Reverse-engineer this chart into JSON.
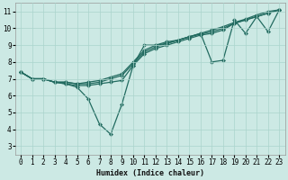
{
  "xlabel": "Humidex (Indice chaleur)",
  "xlim": [
    -0.5,
    23.5
  ],
  "ylim": [
    2.5,
    11.5
  ],
  "xticks": [
    0,
    1,
    2,
    3,
    4,
    5,
    6,
    7,
    8,
    9,
    10,
    11,
    12,
    13,
    14,
    15,
    16,
    17,
    18,
    19,
    20,
    21,
    22,
    23
  ],
  "yticks": [
    3,
    4,
    5,
    6,
    7,
    8,
    9,
    10,
    11
  ],
  "bg_color": "#cce9e4",
  "grid_color": "#aad4cc",
  "line_color": "#226b60",
  "lines": [
    {
      "x": [
        0,
        1,
        2,
        3,
        4,
        5,
        6,
        7,
        8,
        9,
        10,
        11,
        12,
        13,
        14,
        15,
        16,
        17,
        18,
        19,
        20,
        21,
        22,
        23
      ],
      "y": [
        7.4,
        7.0,
        7.0,
        6.8,
        6.7,
        6.5,
        5.8,
        4.3,
        3.7,
        5.5,
        7.8,
        9.0,
        9.0,
        9.1,
        9.3,
        9.5,
        9.7,
        8.0,
        8.1,
        10.5,
        9.7,
        10.7,
        9.8,
        11.1
      ]
    },
    {
      "x": [
        0,
        1,
        2,
        3,
        4,
        5,
        6,
        7,
        8,
        9,
        10,
        11,
        12,
        13,
        14,
        15,
        16,
        17,
        18,
        19,
        20,
        21,
        22,
        23
      ],
      "y": [
        7.4,
        7.0,
        7.0,
        6.8,
        6.7,
        6.6,
        6.6,
        6.7,
        6.8,
        6.9,
        7.8,
        8.5,
        8.8,
        9.0,
        9.2,
        9.4,
        9.6,
        9.7,
        9.9,
        10.3,
        10.5,
        10.7,
        10.9,
        11.1
      ]
    },
    {
      "x": [
        0,
        1,
        2,
        3,
        4,
        5,
        6,
        7,
        8,
        9,
        10,
        11,
        12,
        13,
        14,
        15,
        16,
        17,
        18,
        19,
        20,
        21,
        22,
        23
      ],
      "y": [
        7.4,
        7.0,
        7.0,
        6.8,
        6.8,
        6.7,
        6.7,
        6.8,
        7.0,
        7.2,
        7.9,
        8.6,
        8.9,
        9.1,
        9.3,
        9.5,
        9.65,
        9.8,
        10.0,
        10.3,
        10.5,
        10.7,
        10.9,
        11.1
      ]
    },
    {
      "x": [
        0,
        1,
        2,
        3,
        4,
        5,
        6,
        7,
        8,
        9,
        10,
        11,
        12,
        13,
        14,
        15,
        16,
        17,
        18,
        19,
        20,
        21,
        22,
        23
      ],
      "y": [
        7.4,
        7.0,
        7.0,
        6.8,
        6.8,
        6.7,
        6.8,
        6.9,
        7.1,
        7.3,
        8.0,
        8.7,
        9.0,
        9.2,
        9.3,
        9.5,
        9.7,
        9.9,
        10.1,
        10.35,
        10.55,
        10.8,
        11.0,
        11.1
      ]
    }
  ],
  "xlabel_fontsize": 6.0,
  "tick_fontsize": 5.5,
  "linewidth": 0.9,
  "markersize": 2.2
}
